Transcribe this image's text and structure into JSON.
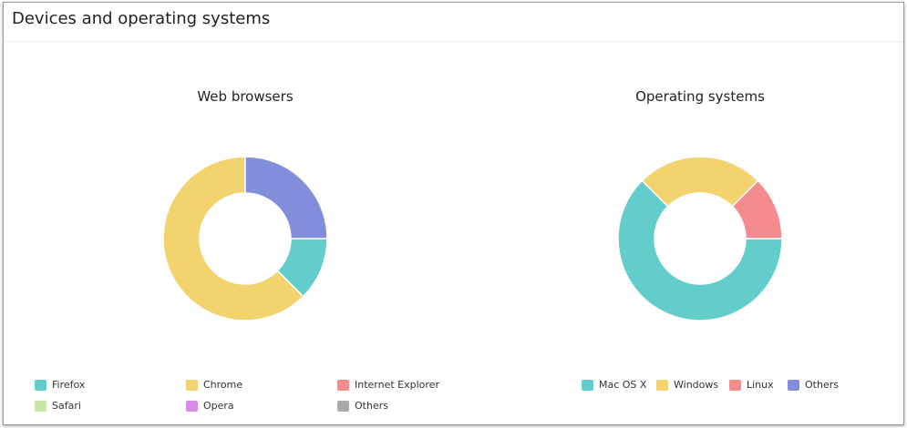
{
  "header": {
    "title": "Devices and operating systems"
  },
  "chart_data": [
    {
      "type": "pie",
      "title": "Web browsers",
      "categories": [
        "Firefox",
        "Chrome",
        "Internet Explorer",
        "Safari",
        "Opera",
        "Others"
      ],
      "values": [
        12.5,
        62.5,
        0,
        0,
        0,
        25
      ],
      "legend_colors": [
        "#62cdca",
        "#f3d36e",
        "#f48c8f",
        "#c8e6a5",
        "#d88ce6",
        "#aaaaaa"
      ],
      "slice_colors": [
        "#62cdca",
        "#f3d36e",
        "#f48c8f",
        "#c8e6a5",
        "#d88ce6",
        "#828edb"
      ],
      "legend": "bottom"
    },
    {
      "type": "pie",
      "title": "Operating systems",
      "categories": [
        "Mac OS X",
        "Windows",
        "Linux",
        "Others"
      ],
      "values": [
        62.5,
        25,
        12.5,
        0
      ],
      "legend_colors": [
        "#62cdca",
        "#f3d36e",
        "#f48c8f",
        "#828edb"
      ],
      "slice_colors": [
        "#62cdca",
        "#f3d36e",
        "#f48c8f",
        "#828edb"
      ],
      "legend": "bottom"
    }
  ]
}
